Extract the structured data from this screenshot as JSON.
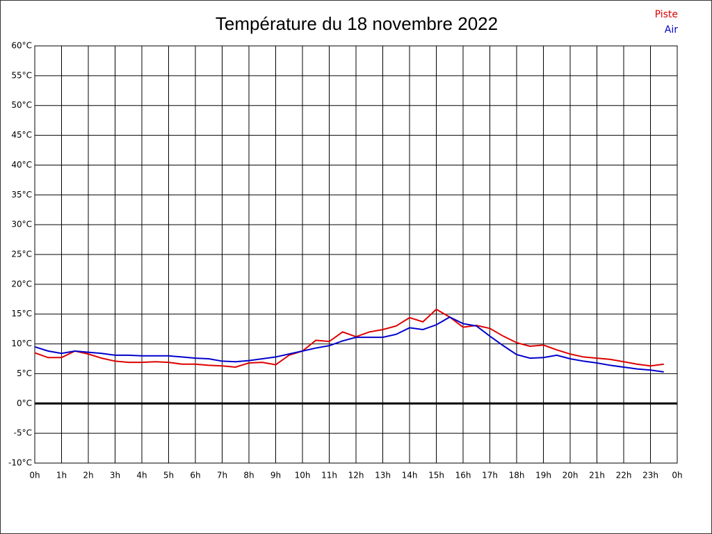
{
  "chart_data": {
    "type": "line",
    "title": "Température du 18 novembre 2022",
    "x": [
      0,
      0.5,
      1,
      1.5,
      2,
      2.5,
      3,
      3.5,
      4,
      4.5,
      5,
      5.5,
      6,
      6.5,
      7,
      7.5,
      8,
      8.5,
      9,
      9.5,
      10,
      10.5,
      11,
      11.5,
      12,
      12.5,
      13,
      13.5,
      14,
      14.5,
      15,
      15.5,
      16,
      16.5,
      17,
      17.5,
      18,
      18.5,
      19,
      19.5,
      20,
      20.5,
      21,
      21.5,
      22,
      22.5,
      23,
      23.5
    ],
    "series": [
      {
        "name": "Piste",
        "color": "#dd0000",
        "values": [
          8.5,
          7.7,
          7.7,
          8.8,
          8.3,
          7.6,
          7.1,
          6.9,
          6.9,
          7.0,
          6.9,
          6.6,
          6.6,
          6.4,
          6.3,
          6.1,
          6.8,
          6.9,
          6.5,
          8.1,
          8.8,
          10.6,
          10.4,
          12.0,
          11.2,
          12.0,
          12.4,
          13.0,
          14.4,
          13.7,
          15.8,
          14.5,
          12.8,
          13.1,
          12.6,
          11.3,
          10.2,
          9.6,
          9.8,
          9.0,
          8.3,
          7.8,
          7.6,
          7.4,
          7.0,
          6.6,
          6.3,
          6.6
        ]
      },
      {
        "name": "Air",
        "color": "#0000cc",
        "values": [
          9.5,
          8.8,
          8.4,
          8.8,
          8.6,
          8.4,
          8.1,
          8.1,
          8.0,
          8.0,
          8.0,
          7.8,
          7.6,
          7.5,
          7.1,
          7.0,
          7.2,
          7.5,
          7.8,
          8.3,
          8.8,
          9.3,
          9.7,
          10.5,
          11.1,
          11.1,
          11.1,
          11.6,
          12.7,
          12.4,
          13.2,
          14.5,
          13.4,
          13.0,
          11.3,
          9.7,
          8.2,
          7.6,
          7.7,
          8.1,
          7.5,
          7.1,
          6.8,
          6.4,
          6.1,
          5.8,
          5.6,
          5.3
        ]
      }
    ],
    "xlim": [
      0,
      24
    ],
    "xticks": [
      {
        "value": 0,
        "label": "0h"
      },
      {
        "value": 1,
        "label": "1h"
      },
      {
        "value": 2,
        "label": "2h"
      },
      {
        "value": 3,
        "label": "3h"
      },
      {
        "value": 4,
        "label": "4h"
      },
      {
        "value": 5,
        "label": "5h"
      },
      {
        "value": 6,
        "label": "6h"
      },
      {
        "value": 7,
        "label": "7h"
      },
      {
        "value": 8,
        "label": "8h"
      },
      {
        "value": 9,
        "label": "9h"
      },
      {
        "value": 10,
        "label": "10h"
      },
      {
        "value": 11,
        "label": "11h"
      },
      {
        "value": 12,
        "label": "12h"
      },
      {
        "value": 13,
        "label": "13h"
      },
      {
        "value": 14,
        "label": "14h"
      },
      {
        "value": 15,
        "label": "15h"
      },
      {
        "value": 16,
        "label": "16h"
      },
      {
        "value": 17,
        "label": "17h"
      },
      {
        "value": 18,
        "label": "18h"
      },
      {
        "value": 19,
        "label": "19h"
      },
      {
        "value": 20,
        "label": "20h"
      },
      {
        "value": 21,
        "label": "21h"
      },
      {
        "value": 22,
        "label": "22h"
      },
      {
        "value": 23,
        "label": "23h"
      },
      {
        "value": 24,
        "label": "0h"
      }
    ],
    "ylim": [
      -10,
      60
    ],
    "yticks": [
      {
        "value": -10,
        "label": "-10°C"
      },
      {
        "value": -5,
        "label": "-5°C"
      },
      {
        "value": 0,
        "label": "0°C"
      },
      {
        "value": 5,
        "label": "5°C"
      },
      {
        "value": 10,
        "label": "10°C"
      },
      {
        "value": 15,
        "label": "15°C"
      },
      {
        "value": 20,
        "label": "20°C"
      },
      {
        "value": 25,
        "label": "25°C"
      },
      {
        "value": 30,
        "label": "30°C"
      },
      {
        "value": 35,
        "label": "35°C"
      },
      {
        "value": 40,
        "label": "40°C"
      },
      {
        "value": 45,
        "label": "45°C"
      },
      {
        "value": 50,
        "label": "50°C"
      },
      {
        "value": 55,
        "label": "55°C"
      },
      {
        "value": 60,
        "label": "60°C"
      }
    ],
    "grid": true,
    "legend": "upper right"
  }
}
